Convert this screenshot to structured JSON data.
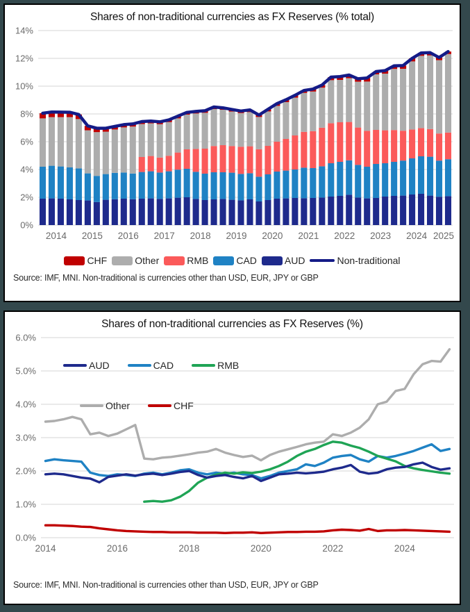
{
  "page": {
    "background_color": "#33484C",
    "panel_background": "#ffffff",
    "panel_border": "#000000"
  },
  "source_note": "Source: IMF,  MNI. Non-traditional is currencies other than USD, EUR, JPY or GBP",
  "chart_data": [
    {
      "id": "top-stacked-bar",
      "type": "bar",
      "subtype": "stacked-quarterly-with-total-line",
      "title": "Shares of non-traditional currencies as FX Reserves (% total)",
      "x_frequency": "quarterly",
      "x_range": "2014Q1-2025Q2",
      "x_labels": [
        "2014",
        "2015",
        "2016",
        "2017",
        "2018",
        "2019",
        "2020",
        "2021",
        "2022",
        "2023",
        "2024",
        "2025"
      ],
      "ylim": [
        0,
        14
      ],
      "y_tick_step": 2,
      "y_tick_format": "0%",
      "grid": true,
      "legend_position": "bottom",
      "series": [
        {
          "name": "AUD",
          "color": "#1E2A8C",
          "values": [
            1.9,
            1.92,
            1.9,
            1.85,
            1.8,
            1.77,
            1.66,
            1.82,
            1.86,
            1.9,
            1.86,
            1.9,
            1.92,
            1.88,
            1.92,
            1.97,
            2.0,
            1.88,
            1.8,
            1.85,
            1.88,
            1.82,
            1.78,
            1.85,
            1.7,
            1.8,
            1.9,
            1.92,
            1.95,
            1.93,
            1.95,
            1.98,
            2.05,
            2.1,
            2.18,
            1.98,
            1.92,
            1.95,
            2.05,
            2.1,
            2.12,
            2.2,
            2.25,
            2.12,
            2.04,
            2.08
          ]
        },
        {
          "name": "CAD",
          "color": "#1F82C4",
          "values": [
            2.3,
            2.35,
            2.32,
            2.3,
            2.28,
            1.95,
            1.88,
            1.85,
            1.9,
            1.88,
            1.85,
            1.92,
            1.95,
            1.9,
            1.95,
            2.02,
            2.05,
            1.95,
            1.9,
            1.95,
            1.92,
            1.95,
            1.9,
            1.88,
            1.78,
            1.85,
            1.95,
            2.0,
            2.05,
            2.2,
            2.15,
            2.25,
            2.4,
            2.45,
            2.48,
            2.35,
            2.28,
            2.45,
            2.4,
            2.45,
            2.52,
            2.6,
            2.7,
            2.8,
            2.6,
            2.66
          ]
        },
        {
          "name": "RMB",
          "color": "#FB5A5A",
          "values": [
            null,
            null,
            null,
            null,
            null,
            null,
            null,
            null,
            null,
            null,
            null,
            1.08,
            1.1,
            1.08,
            1.12,
            1.23,
            1.4,
            1.65,
            1.8,
            1.89,
            1.95,
            1.92,
            1.96,
            1.94,
            1.98,
            2.05,
            2.15,
            2.28,
            2.45,
            2.58,
            2.66,
            2.78,
            2.88,
            2.85,
            2.76,
            2.69,
            2.58,
            2.45,
            2.37,
            2.29,
            2.15,
            2.08,
            2.03,
            1.99,
            1.95,
            1.92
          ]
        },
        {
          "name": "Other",
          "color": "#ADADAD",
          "values": [
            3.48,
            3.5,
            3.55,
            3.62,
            3.55,
            3.1,
            3.15,
            3.05,
            3.12,
            3.25,
            3.38,
            2.37,
            2.35,
            2.4,
            2.42,
            2.46,
            2.5,
            2.55,
            2.58,
            2.66,
            2.55,
            2.48,
            2.42,
            2.46,
            2.32,
            2.48,
            2.58,
            2.65,
            2.72,
            2.8,
            2.85,
            2.88,
            3.1,
            3.05,
            3.15,
            3.3,
            3.55,
            4.0,
            4.08,
            4.4,
            4.46,
            4.9,
            5.2,
            5.3,
            5.28,
            5.65
          ]
        },
        {
          "name": "CHF",
          "color": "#C00000",
          "values": [
            0.37,
            0.37,
            0.36,
            0.35,
            0.33,
            0.32,
            0.28,
            0.25,
            0.22,
            0.2,
            0.19,
            0.18,
            0.17,
            0.17,
            0.16,
            0.16,
            0.16,
            0.15,
            0.15,
            0.15,
            0.14,
            0.15,
            0.15,
            0.16,
            0.14,
            0.15,
            0.16,
            0.17,
            0.17,
            0.18,
            0.18,
            0.19,
            0.22,
            0.24,
            0.23,
            0.21,
            0.26,
            0.2,
            0.22,
            0.22,
            0.23,
            0.22,
            0.21,
            0.2,
            0.19,
            0.18
          ]
        }
      ],
      "total_line": {
        "label": "Non-traditional",
        "color": "#141B87",
        "note": "line equals sum of stacked components"
      },
      "legend": [
        {
          "label": "CHF",
          "color": "#C00000",
          "swatch": "box"
        },
        {
          "label": "Other",
          "color": "#ADADAD",
          "swatch": "box"
        },
        {
          "label": "RMB",
          "color": "#FB5A5A",
          "swatch": "box"
        },
        {
          "label": "CAD",
          "color": "#1F82C4",
          "swatch": "box"
        },
        {
          "label": "AUD",
          "color": "#1E2A8C",
          "swatch": "box"
        },
        {
          "label": "Non-traditional",
          "color": "#141B87",
          "swatch": "line"
        }
      ]
    },
    {
      "id": "bottom-lines",
      "type": "line",
      "title": "Shares of non-traditional currencies as FX Reserves (%)",
      "x_frequency": "quarterly",
      "x_range": "2014Q1-2025Q2",
      "x_labels": [
        "2014",
        "2016",
        "2018",
        "2020",
        "2022",
        "2024"
      ],
      "x_label_every_n_quarters": 8,
      "ylim": [
        0,
        6
      ],
      "y_tick_step": 1,
      "y_tick_format": "0.0%",
      "grid": true,
      "legend_position": "inside-top-left-two-rows",
      "series": [
        {
          "name": "Other",
          "color": "#ADADAD",
          "values": [
            3.48,
            3.5,
            3.55,
            3.62,
            3.55,
            3.1,
            3.15,
            3.05,
            3.12,
            3.25,
            3.38,
            2.37,
            2.35,
            2.4,
            2.42,
            2.46,
            2.5,
            2.55,
            2.58,
            2.66,
            2.55,
            2.48,
            2.42,
            2.46,
            2.32,
            2.48,
            2.58,
            2.65,
            2.72,
            2.8,
            2.85,
            2.88,
            3.1,
            3.05,
            3.15,
            3.3,
            3.55,
            4.0,
            4.08,
            4.4,
            4.46,
            4.9,
            5.2,
            5.3,
            5.28,
            5.65
          ]
        },
        {
          "name": "CHF",
          "color": "#C00000",
          "values": [
            0.37,
            0.37,
            0.36,
            0.35,
            0.33,
            0.32,
            0.28,
            0.25,
            0.22,
            0.2,
            0.19,
            0.18,
            0.17,
            0.17,
            0.16,
            0.16,
            0.16,
            0.15,
            0.15,
            0.15,
            0.14,
            0.15,
            0.15,
            0.16,
            0.14,
            0.15,
            0.16,
            0.17,
            0.17,
            0.18,
            0.18,
            0.19,
            0.22,
            0.24,
            0.23,
            0.21,
            0.26,
            0.2,
            0.22,
            0.22,
            0.23,
            0.22,
            0.21,
            0.2,
            0.19,
            0.18
          ]
        },
        {
          "name": "CAD",
          "color": "#1F82C4",
          "values": [
            2.3,
            2.35,
            2.32,
            2.3,
            2.28,
            1.95,
            1.88,
            1.85,
            1.9,
            1.88,
            1.85,
            1.92,
            1.95,
            1.9,
            1.95,
            2.02,
            2.05,
            1.95,
            1.9,
            1.95,
            1.92,
            1.95,
            1.9,
            1.88,
            1.78,
            1.85,
            1.95,
            2.0,
            2.05,
            2.2,
            2.15,
            2.25,
            2.4,
            2.45,
            2.48,
            2.35,
            2.28,
            2.45,
            2.4,
            2.45,
            2.52,
            2.6,
            2.7,
            2.8,
            2.6,
            2.66
          ]
        },
        {
          "name": "RMB",
          "color": "#1FA455",
          "values": [
            null,
            null,
            null,
            null,
            null,
            null,
            null,
            null,
            null,
            null,
            null,
            1.08,
            1.1,
            1.08,
            1.12,
            1.23,
            1.4,
            1.65,
            1.8,
            1.89,
            1.95,
            1.92,
            1.96,
            1.94,
            1.98,
            2.05,
            2.15,
            2.28,
            2.45,
            2.58,
            2.66,
            2.78,
            2.88,
            2.85,
            2.76,
            2.69,
            2.58,
            2.45,
            2.37,
            2.29,
            2.15,
            2.08,
            2.03,
            1.99,
            1.95,
            1.92
          ]
        },
        {
          "name": "AUD",
          "color": "#1E2A8C",
          "values": [
            1.9,
            1.92,
            1.9,
            1.85,
            1.8,
            1.77,
            1.66,
            1.82,
            1.86,
            1.9,
            1.86,
            1.9,
            1.92,
            1.88,
            1.92,
            1.97,
            2.0,
            1.88,
            1.8,
            1.85,
            1.88,
            1.82,
            1.78,
            1.85,
            1.7,
            1.8,
            1.9,
            1.92,
            1.95,
            1.93,
            1.95,
            1.98,
            2.05,
            2.1,
            2.18,
            1.98,
            1.92,
            1.95,
            2.05,
            2.1,
            2.12,
            2.2,
            2.25,
            2.12,
            2.04,
            2.08
          ]
        }
      ],
      "legend_rows": [
        [
          {
            "label": "AUD",
            "color": "#1E2A8C"
          },
          {
            "label": "CAD",
            "color": "#1F82C4"
          },
          {
            "label": "RMB",
            "color": "#1FA455"
          }
        ],
        [
          {
            "label": "Other",
            "color": "#ADADAD"
          },
          {
            "label": "CHF",
            "color": "#C00000"
          }
        ]
      ]
    }
  ]
}
